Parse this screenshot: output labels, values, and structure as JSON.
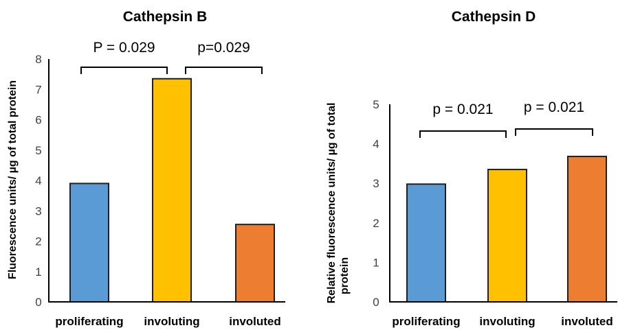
{
  "chart_data": [
    {
      "type": "bar",
      "title": "Cathepsin B",
      "ylabel": "Fluorescence units/ µg of total protein",
      "categories": [
        "proliferating",
        "involuting",
        "involuted"
      ],
      "values": [
        3.9,
        7.35,
        2.55
      ],
      "colors": [
        "#5b9bd5",
        "#ffc000",
        "#ed7d31"
      ],
      "ylim": [
        0,
        8
      ],
      "yticks": [
        "0",
        "1",
        "2",
        "3",
        "4",
        "5",
        "6",
        "7",
        "8"
      ],
      "annotations": [
        {
          "text": "P = 0.029",
          "from": 0,
          "to": 1
        },
        {
          "text": "p=0.029",
          "from": 1,
          "to": 2
        }
      ]
    },
    {
      "type": "bar",
      "title": "Cathepsin D",
      "ylabel_lines": [
        "Relative fluorescence units/ µg of total",
        "protein"
      ],
      "categories": [
        "proliferating",
        "involuting",
        "involuted"
      ],
      "values": [
        2.98,
        3.35,
        3.68
      ],
      "colors": [
        "#5b9bd5",
        "#ffc000",
        "#ed7d31"
      ],
      "ylim": [
        0,
        5
      ],
      "yticks": [
        "0",
        "1",
        "2",
        "3",
        "4",
        "5"
      ],
      "annotations": [
        {
          "text": "p = 0.021",
          "from": 0,
          "to": 1
        },
        {
          "text": "p = 0.021",
          "from": 1,
          "to": 2
        }
      ]
    }
  ]
}
